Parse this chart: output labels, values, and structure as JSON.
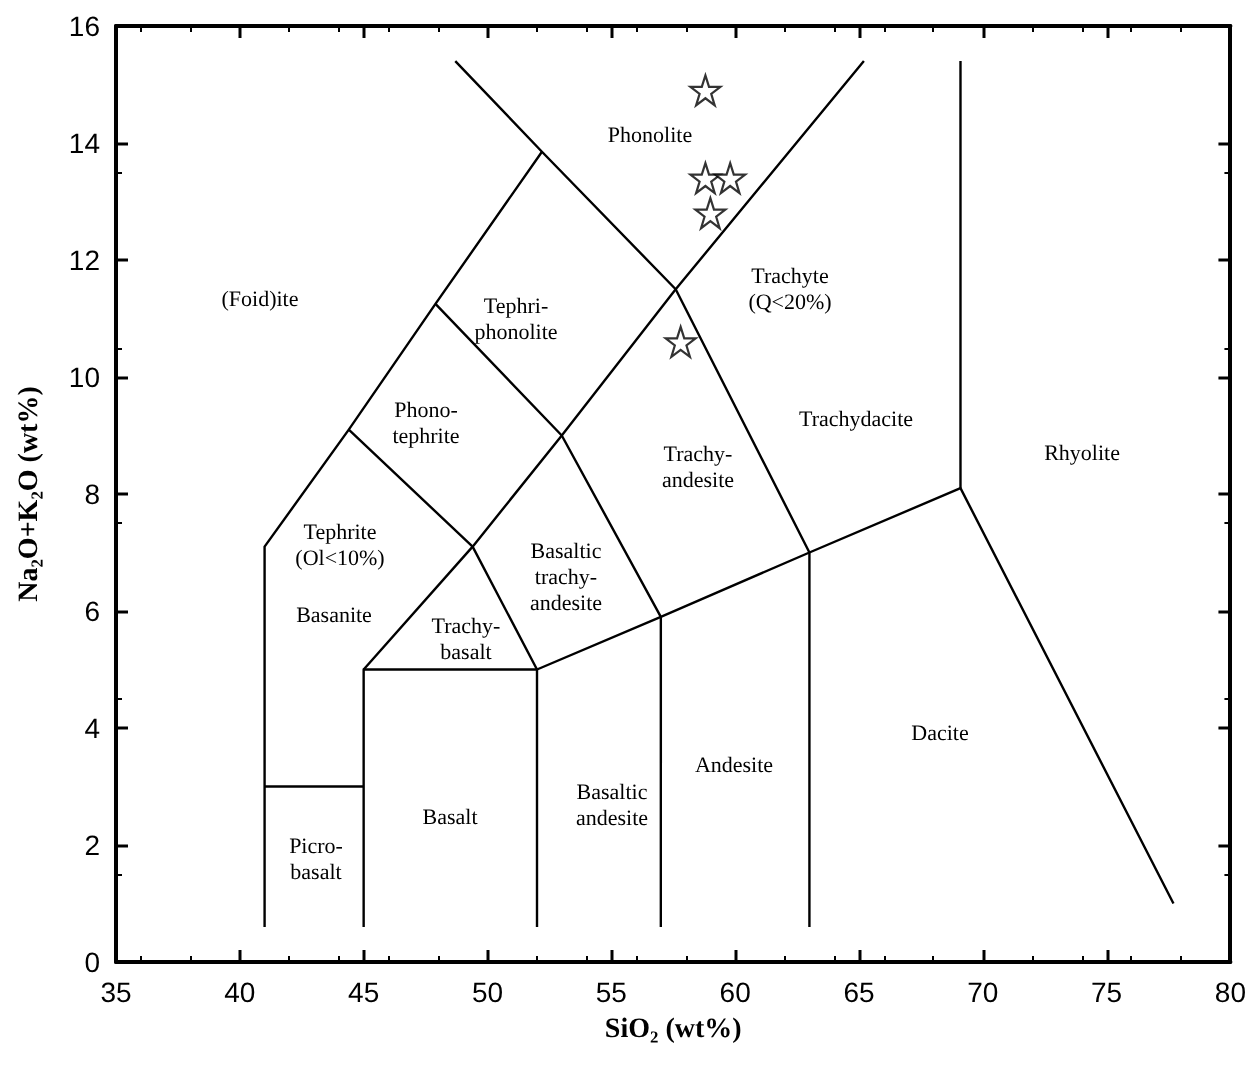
{
  "chart_data": {
    "type": "scatter",
    "xlabel": "SiO₂ (wt%)",
    "ylabel": "Na₂O+K₂O (wt%)",
    "xlim": [
      35,
      80
    ],
    "xticks": [
      35,
      40,
      45,
      50,
      55,
      60,
      65,
      70,
      75,
      80
    ],
    "ylim": [
      0,
      16
    ],
    "yticks": [
      0,
      2,
      4,
      6,
      8,
      10,
      12,
      14,
      16
    ],
    "grid": false,
    "series": [
      {
        "type": "line",
        "color": "#000000",
        "x": [
          41,
          41,
          44.4,
          47.9,
          52.2
        ],
        "values": [
          0.6,
          7.1,
          9.1,
          11.25,
          13.85
        ]
      },
      {
        "type": "line",
        "color": "#000000",
        "x": [
          48.7,
          52.2,
          57.6,
          63.0
        ],
        "values": [
          15.4,
          13.85,
          11.5,
          7.0
        ]
      },
      {
        "type": "line",
        "color": "#000000",
        "x": [
          44.4,
          49.4,
          52.0,
          52.0
        ],
        "values": [
          9.1,
          7.1,
          5.0,
          0.6
        ]
      },
      {
        "type": "line",
        "color": "#000000",
        "x": [
          47.9,
          53.0,
          57.0,
          57.0
        ],
        "values": [
          11.25,
          9.0,
          5.9,
          0.6
        ]
      },
      {
        "type": "line",
        "color": "#000000",
        "x": [
          45.0,
          45.0,
          52.0,
          57.0,
          63.0,
          69.1,
          77.7
        ],
        "values": [
          0.6,
          5.0,
          5.0,
          5.9,
          7.0,
          8.1,
          1.0
        ]
      },
      {
        "type": "line",
        "color": "#000000",
        "x": [
          41,
          45
        ],
        "values": [
          3,
          3
        ]
      },
      {
        "type": "line",
        "color": "#000000",
        "x": [
          45.0,
          49.4,
          53.0,
          57.6,
          65.2
        ],
        "values": [
          5.0,
          7.1,
          9.0,
          11.5,
          15.4
        ]
      },
      {
        "type": "line",
        "color": "#000000",
        "x": [
          63,
          63
        ],
        "values": [
          0.6,
          7.0
        ]
      },
      {
        "type": "line",
        "color": "#000000",
        "x": [
          69.1,
          69.1
        ],
        "values": [
          8.1,
          15.4
        ]
      },
      {
        "color": "#000000",
        "marker": "star",
        "x": [
          58.8,
          58.8,
          59.8,
          59.0,
          57.8
        ],
        "values": [
          14.9,
          13.4,
          13.4,
          12.8,
          10.6
        ]
      }
    ],
    "annotations": [
      "Phonolite",
      "(Foid)ite",
      "Tephri-\nphonolite",
      "Phono-\ntephrite",
      "Tephrite\n(Ol<10%)",
      "Basanite",
      "Trachy-\nbasalt",
      "Basaltic\ntrachy-\nandesite",
      "Trachy-\nandesite",
      "Trachyte\n(Q<20%)",
      "Trachydacite",
      "Rhyolite",
      "Dacite",
      "Andesite",
      "Basaltic\nandesite",
      "Basalt",
      "Picro-\nbasalt"
    ]
  }
}
